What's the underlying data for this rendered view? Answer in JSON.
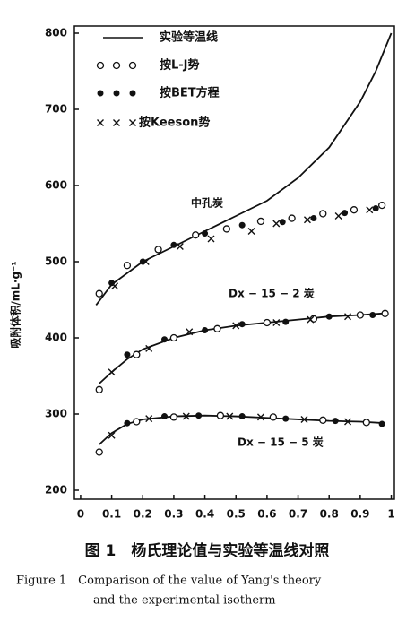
{
  "chart_data": {
    "type": "line",
    "ylabel": "吸附体积/mL·g⁻¹",
    "xlim": [
      -0.02,
      1.01
    ],
    "ylim": [
      200,
      800
    ],
    "xticks": [
      0,
      0.1,
      0.2,
      0.3,
      0.4,
      0.5,
      0.6,
      0.7,
      0.8,
      0.9,
      1
    ],
    "yticks": [
      200,
      300,
      400,
      500,
      600,
      700,
      800
    ],
    "color": "#111111",
    "legend": [
      {
        "label": "实验等温线",
        "kind": "line"
      },
      {
        "label": "按L-J势",
        "kind": "open-circle"
      },
      {
        "label": "按BET方程",
        "kind": "filled-circle"
      },
      {
        "label": "按Keeson势",
        "kind": "cross"
      }
    ],
    "annotations": [
      "中孔炭",
      "Dx − 15 − 2 炭",
      "Dx − 15 − 5 炭"
    ],
    "series": [
      {
        "kind": "line",
        "x": [
          0.05,
          0.1,
          0.2,
          0.3,
          0.4,
          0.5,
          0.6,
          0.7,
          0.8,
          0.9,
          0.95,
          1.0
        ],
        "values": [
          443,
          470,
          500,
          520,
          540,
          560,
          580,
          610,
          650,
          710,
          750,
          800
        ]
      },
      {
        "kind": "open-circle",
        "x": [
          0.06,
          0.15,
          0.25,
          0.37,
          0.47,
          0.58,
          0.68,
          0.78,
          0.88,
          0.97
        ],
        "values": [
          458,
          495,
          516,
          535,
          543,
          553,
          557,
          563,
          568,
          574
        ]
      },
      {
        "kind": "filled-circle",
        "x": [
          0.1,
          0.2,
          0.3,
          0.4,
          0.52,
          0.65,
          0.75,
          0.85,
          0.95
        ],
        "values": [
          472,
          500,
          522,
          537,
          548,
          552,
          557,
          564,
          570
        ]
      },
      {
        "kind": "cross",
        "x": [
          0.11,
          0.21,
          0.32,
          0.42,
          0.55,
          0.63,
          0.73,
          0.83,
          0.93
        ],
        "values": [
          468,
          500,
          520,
          530,
          540,
          550,
          555,
          560,
          568
        ]
      },
      {
        "kind": "line",
        "x": [
          0.06,
          0.1,
          0.15,
          0.2,
          0.3,
          0.4,
          0.5,
          0.6,
          0.7,
          0.8,
          0.9,
          0.97
        ],
        "values": [
          340,
          355,
          372,
          385,
          400,
          410,
          416,
          420,
          424,
          428,
          430,
          432
        ]
      },
      {
        "kind": "open-circle",
        "x": [
          0.06,
          0.18,
          0.3,
          0.44,
          0.6,
          0.75,
          0.9,
          0.98
        ],
        "values": [
          332,
          378,
          400,
          412,
          420,
          425,
          430,
          432
        ]
      },
      {
        "kind": "filled-circle",
        "x": [
          0.15,
          0.27,
          0.4,
          0.52,
          0.66,
          0.8,
          0.94
        ],
        "values": [
          378,
          398,
          410,
          418,
          421,
          428,
          430
        ]
      },
      {
        "kind": "cross",
        "x": [
          0.1,
          0.22,
          0.35,
          0.5,
          0.63,
          0.74,
          0.86
        ],
        "values": [
          355,
          386,
          408,
          416,
          420,
          424,
          428
        ]
      },
      {
        "kind": "line",
        "x": [
          0.06,
          0.1,
          0.15,
          0.2,
          0.3,
          0.4,
          0.5,
          0.6,
          0.7,
          0.8,
          0.9,
          0.98
        ],
        "values": [
          260,
          275,
          287,
          293,
          297,
          298,
          297,
          295,
          293,
          291,
          290,
          288
        ]
      },
      {
        "kind": "open-circle",
        "x": [
          0.06,
          0.18,
          0.3,
          0.45,
          0.62,
          0.78,
          0.92
        ],
        "values": [
          250,
          290,
          296,
          298,
          296,
          292,
          289
        ]
      },
      {
        "kind": "filled-circle",
        "x": [
          0.15,
          0.27,
          0.38,
          0.52,
          0.66,
          0.82,
          0.97
        ],
        "values": [
          288,
          297,
          298,
          297,
          294,
          291,
          287
        ]
      },
      {
        "kind": "cross",
        "x": [
          0.1,
          0.22,
          0.34,
          0.48,
          0.58,
          0.72,
          0.86
        ],
        "values": [
          272,
          294,
          297,
          297,
          296,
          293,
          290
        ]
      }
    ],
    "caption": [
      "图 1　杨氏理论值与实验等温线对照",
      "Figure 1　Comparison of the value of Yang's theory",
      "and the experimental isotherm"
    ]
  }
}
